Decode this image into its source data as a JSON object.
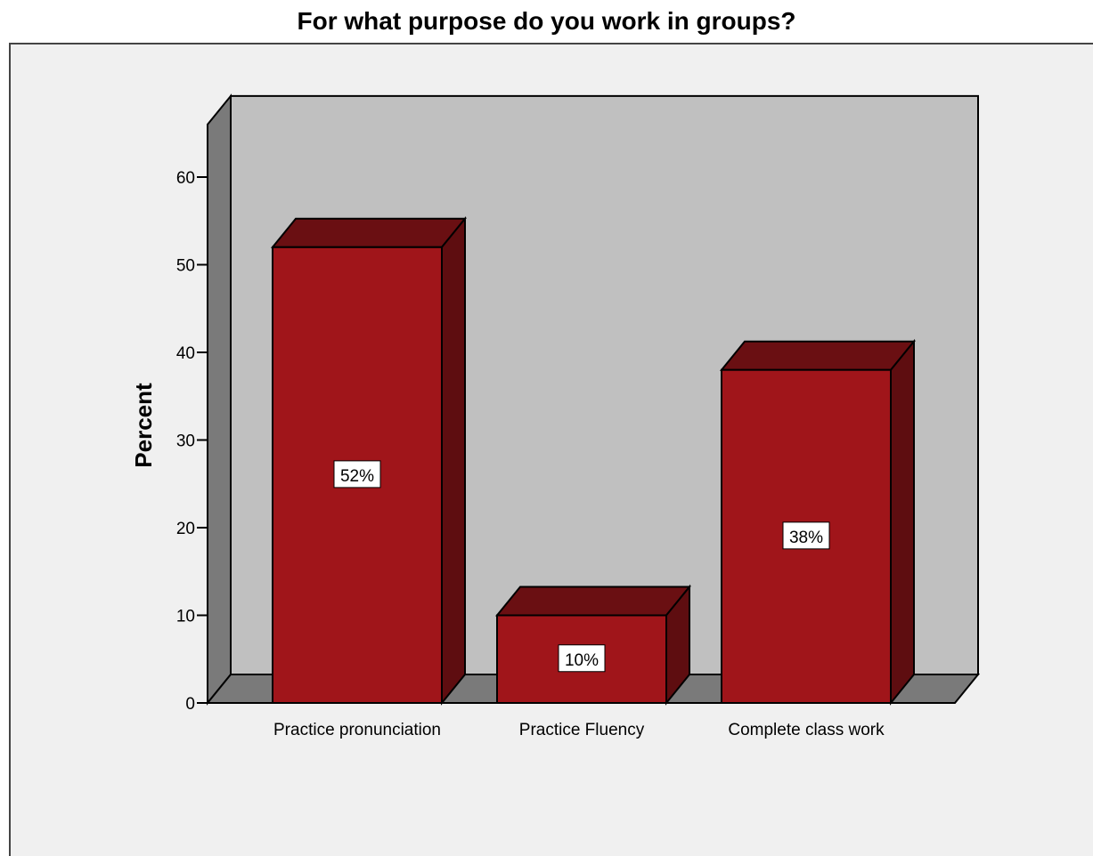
{
  "chart_data": {
    "type": "bar",
    "title": "For what purpose do you work in groups?",
    "xlabel": "",
    "ylabel": "Percent",
    "categories": [
      "Practice pronunciation",
      "Practice Fluency",
      "Complete class work"
    ],
    "values": [
      52,
      10,
      38
    ],
    "data_labels": [
      "52%",
      "10%",
      "38%"
    ],
    "ylim": [
      0,
      60
    ],
    "yticks": [
      "0",
      "10",
      "20",
      "30",
      "40",
      "50",
      "60"
    ],
    "grid": false,
    "legend": "none",
    "colors": {
      "bar_front": "#a0151a",
      "bar_top": "#6a0f12",
      "bar_side": "#5e0d10",
      "wall_back": "#c0c0c0",
      "wall_side": "#7a7a7a",
      "floor": "#7a7a7a",
      "background": "#f0f0f0"
    }
  }
}
